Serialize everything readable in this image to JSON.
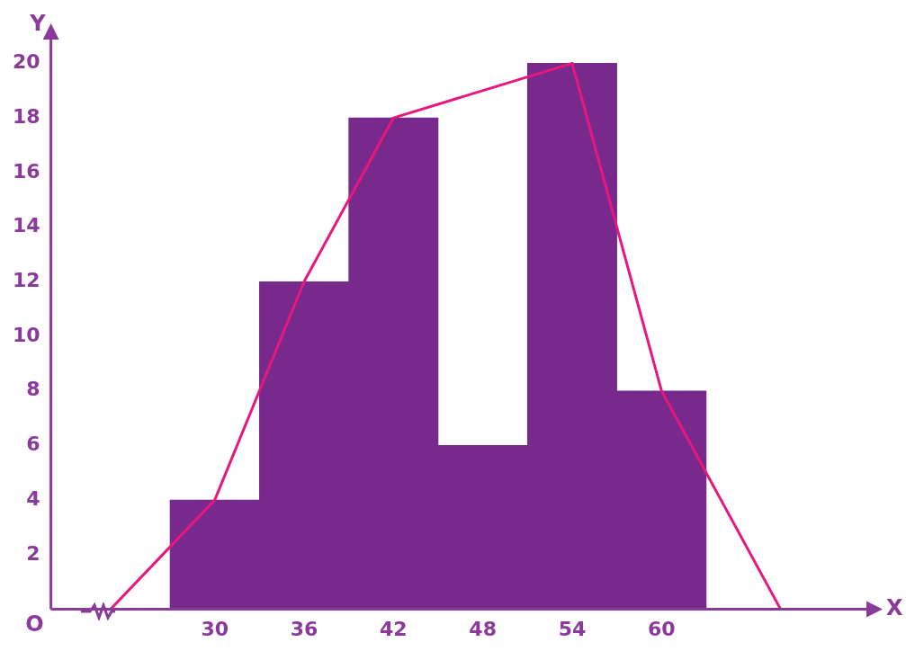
{
  "chart_data": {
    "type": "histogram",
    "xlabel": "X",
    "ylabel": "Y",
    "annotations": [
      "O"
    ],
    "bins": [
      27,
      33,
      39,
      45,
      51,
      57,
      63
    ],
    "values": [
      4,
      12,
      18,
      6,
      20,
      8
    ],
    "color": "#782a8c",
    "series": [
      {
        "type": "line",
        "color": "#e8177d",
        "x": [
          23,
          30,
          36,
          42,
          54,
          60,
          68
        ],
        "values": [
          0,
          4,
          12,
          18,
          20,
          8,
          0
        ]
      }
    ],
    "xlim": [
      19,
      74
    ],
    "xticks": [
      30,
      36,
      42,
      48,
      54,
      60
    ],
    "ylim": [
      0,
      21
    ],
    "yticks": [
      2,
      4,
      6,
      8,
      10,
      12,
      14,
      16,
      18,
      20
    ],
    "grid": false,
    "legend": false,
    "marker": "none"
  }
}
